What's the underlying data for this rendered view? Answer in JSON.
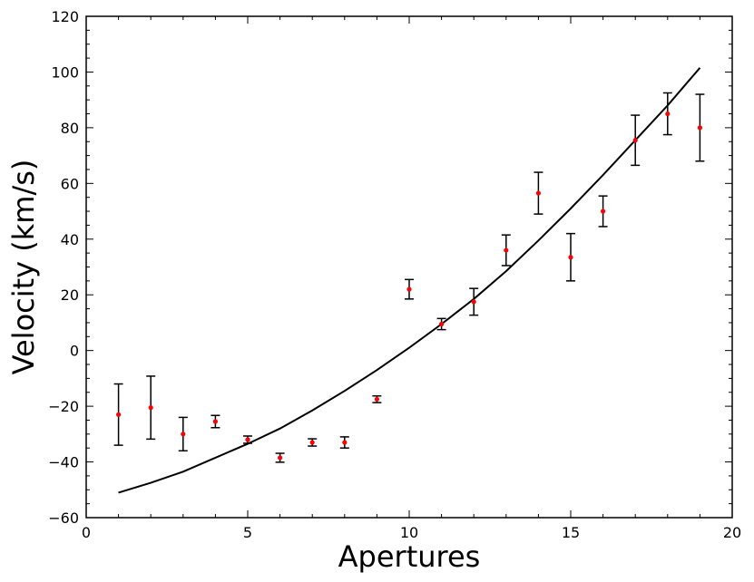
{
  "chart_data": {
    "type": "scatter",
    "title": "",
    "xlabel": "Apertures",
    "ylabel": "Velocity (km/s)",
    "xlim": [
      0,
      20
    ],
    "ylim": [
      -60,
      120
    ],
    "x_ticks": [
      0,
      5,
      10,
      15,
      20
    ],
    "y_ticks": [
      -60,
      -40,
      -20,
      0,
      20,
      40,
      60,
      80,
      100,
      120
    ],
    "x_tick_labels": [
      "0",
      "5",
      "10",
      "15",
      "20"
    ],
    "y_tick_labels": [
      "−60",
      "−40",
      "−20",
      "0",
      "20",
      "40",
      "60",
      "80",
      "100",
      "120"
    ],
    "grid": false,
    "legend": "none",
    "series": [
      {
        "kind": "points-with-error-bars",
        "color": "#ff0000",
        "errorbar_color": "#000000",
        "points": [
          {
            "x": 1,
            "y": -23.0,
            "err": 11.0
          },
          {
            "x": 2,
            "y": -20.5,
            "err": 11.3
          },
          {
            "x": 3,
            "y": -30.0,
            "err": 6.0
          },
          {
            "x": 4,
            "y": -25.5,
            "err": 2.2
          },
          {
            "x": 5,
            "y": -32.0,
            "err": 1.3
          },
          {
            "x": 6,
            "y": -38.5,
            "err": 1.6
          },
          {
            "x": 7,
            "y": -33.0,
            "err": 1.3
          },
          {
            "x": 8,
            "y": -33.0,
            "err": 2.0
          },
          {
            "x": 9,
            "y": -17.5,
            "err": 1.2
          },
          {
            "x": 10,
            "y": 22.0,
            "err": 3.5
          },
          {
            "x": 11,
            "y": 9.5,
            "err": 2.0
          },
          {
            "x": 12,
            "y": 17.5,
            "err": 4.8
          },
          {
            "x": 13,
            "y": 36.0,
            "err": 5.5
          },
          {
            "x": 14,
            "y": 56.5,
            "err": 7.5
          },
          {
            "x": 15,
            "y": 33.5,
            "err": 8.5
          },
          {
            "x": 16,
            "y": 50.0,
            "err": 5.5
          },
          {
            "x": 17,
            "y": 75.5,
            "err": 9.0
          },
          {
            "x": 18,
            "y": 85.0,
            "err": 7.5
          },
          {
            "x": 19,
            "y": 80.0,
            "err": 12.0
          }
        ]
      },
      {
        "kind": "line",
        "color": "#000000",
        "points": [
          {
            "x": 1,
            "y": -51.0
          },
          {
            "x": 2,
            "y": -47.5
          },
          {
            "x": 3,
            "y": -43.5
          },
          {
            "x": 4,
            "y": -38.5
          },
          {
            "x": 5,
            "y": -33.5
          },
          {
            "x": 6,
            "y": -28.0
          },
          {
            "x": 7,
            "y": -21.5
          },
          {
            "x": 8,
            "y": -14.5
          },
          {
            "x": 9,
            "y": -7.0
          },
          {
            "x": 10,
            "y": 1.0
          },
          {
            "x": 11,
            "y": 9.5
          },
          {
            "x": 12,
            "y": 18.5
          },
          {
            "x": 13,
            "y": 28.5
          },
          {
            "x": 14,
            "y": 39.5
          },
          {
            "x": 15,
            "y": 51.0
          },
          {
            "x": 16,
            "y": 63.0
          },
          {
            "x": 17,
            "y": 75.5
          },
          {
            "x": 18,
            "y": 88.0
          },
          {
            "x": 19,
            "y": 101.5
          }
        ]
      }
    ]
  }
}
